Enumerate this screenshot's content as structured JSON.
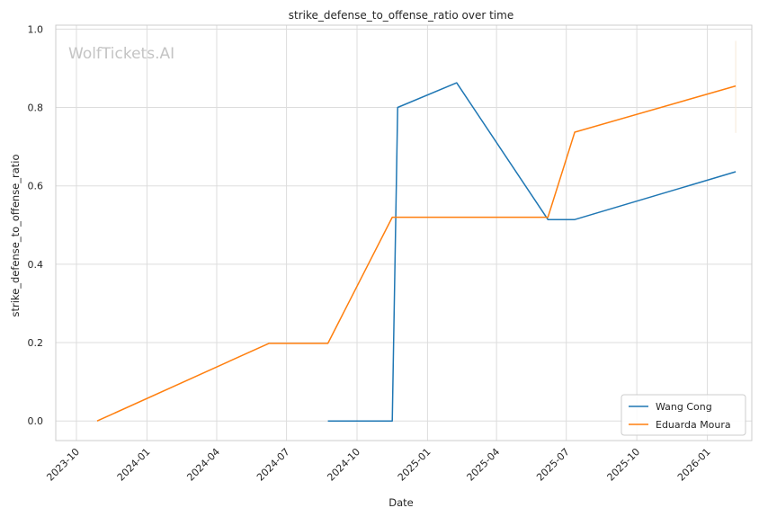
{
  "chart_data": {
    "type": "line",
    "title": "strike_defense_to_offense_ratio over time",
    "xlabel": "Date",
    "ylabel": "strike_defense_to_offense_ratio",
    "watermark": "WolfTickets.AI",
    "xlim": [
      "2023-09-04",
      "2026-02-28"
    ],
    "ylim": [
      -0.05,
      1.01
    ],
    "x_ticks": [
      "2023-10",
      "2024-01",
      "2024-04",
      "2024-07",
      "2024-10",
      "2025-01",
      "2025-04",
      "2025-07",
      "2025-10",
      "2026-01"
    ],
    "y_ticks": [
      "0.0",
      "0.2",
      "0.4",
      "0.6",
      "0.8",
      "1.0"
    ],
    "grid": true,
    "legend_position": "lower-right",
    "series": [
      {
        "name": "Wang Cong",
        "color": "#1f77b4",
        "x": [
          "2024-08-24",
          "2024-11-16",
          "2024-11-23",
          "2025-02-08",
          "2025-06-07",
          "2025-07-12",
          "2026-02-07"
        ],
        "y": [
          0.0,
          0.0,
          0.8,
          0.863,
          0.514,
          0.514,
          0.636
        ]
      },
      {
        "name": "Eduarda Moura",
        "color": "#ff7f0e",
        "x": [
          "2023-10-28",
          "2024-06-08",
          "2024-08-24",
          "2024-11-16",
          "2025-06-07",
          "2025-07-12",
          "2026-02-07"
        ],
        "y": [
          0.0,
          0.198,
          0.198,
          0.52,
          0.52,
          0.737,
          0.855
        ]
      }
    ]
  }
}
